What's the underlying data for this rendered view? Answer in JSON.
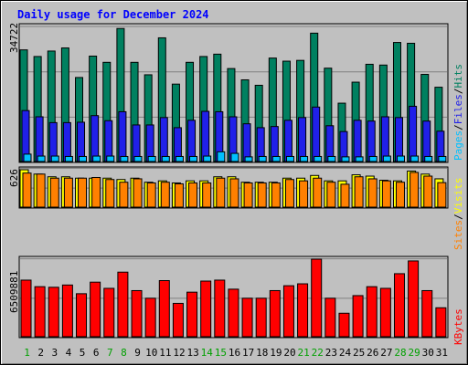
{
  "title": "Daily usage for December 2024",
  "days": [
    "1",
    "2",
    "3",
    "4",
    "5",
    "6",
    "7",
    "8",
    "9",
    "10",
    "11",
    "12",
    "13",
    "14",
    "15",
    "16",
    "17",
    "18",
    "19",
    "20",
    "21",
    "22",
    "23",
    "24",
    "25",
    "26",
    "27",
    "28",
    "29",
    "30",
    "31"
  ],
  "weekend_days": [
    "1",
    "7",
    "8",
    "14",
    "15",
    "21",
    "22",
    "28",
    "29"
  ],
  "colors": {
    "background": "#c0c0c0",
    "title": "#0000ff",
    "pages": "#2020e8",
    "files": "#00c0ff",
    "hits": "#008060",
    "sites": "#ff8000",
    "visits": "#ffff00",
    "kbytes": "#ff0000",
    "weekday_label": "#000000",
    "weekend_label": "#00a000",
    "gridline": "#808080"
  },
  "legend": {
    "top": [
      {
        "text": "Pages",
        "color_key": "files"
      },
      {
        "text": "/",
        "color_key": "weekday_label"
      },
      {
        "text": "Files",
        "color_key": "pages"
      },
      {
        "text": "/",
        "color_key": "weekday_label"
      },
      {
        "text": "Hits",
        "color_key": "hits"
      }
    ],
    "middle": [
      {
        "text": "Sites",
        "color_key": "sites"
      },
      {
        "text": "/",
        "color_key": "weekday_label"
      },
      {
        "text": "Visits",
        "color_key": "visits"
      }
    ],
    "bottom": [
      {
        "text": "KBytes",
        "color_key": "kbytes"
      }
    ]
  },
  "chart_data": {
    "type": "bar",
    "title": "Daily usage for December 2024",
    "categories": [
      "1",
      "2",
      "3",
      "4",
      "5",
      "6",
      "7",
      "8",
      "9",
      "10",
      "11",
      "12",
      "13",
      "14",
      "15",
      "16",
      "17",
      "18",
      "19",
      "20",
      "21",
      "22",
      "23",
      "24",
      "25",
      "26",
      "27",
      "28",
      "29",
      "30",
      "31"
    ],
    "panels": [
      {
        "name": "hits-files-pages",
        "max_label": "34722",
        "ylim": [
          0,
          34722
        ],
        "series": [
          {
            "name": "Hits",
            "color_key": "hits",
            "values": [
              28700,
              27000,
              28400,
              29200,
              21600,
              27100,
              25500,
              34200,
              25500,
              22300,
              31800,
              19900,
              25500,
              27000,
              27600,
              23900,
              21000,
              19600,
              26600,
              25800,
              26000,
              33000,
              24000,
              15000,
              20400,
              25000,
              24800,
              30600,
              30400,
              22400,
              19100
            ]
          },
          {
            "name": "Files",
            "color_key": "pages",
            "values": [
              13100,
              11500,
              10000,
              10000,
              10100,
              11800,
              10500,
              12800,
              9400,
              9400,
              11300,
              8700,
              10600,
              12900,
              12800,
              11500,
              9700,
              8700,
              9000,
              10600,
              11300,
              14000,
              9200,
              7700,
              10600,
              10400,
              11500,
              11300,
              14200,
              10400,
              7800
            ]
          },
          {
            "name": "Pages",
            "color_key": "files",
            "values": [
              1900,
              1400,
              1400,
              1300,
              1300,
              1400,
              1400,
              1300,
              1300,
              1300,
              1300,
              1300,
              1300,
              1400,
              2500,
              2100,
              1200,
              1300,
              1300,
              1300,
              1300,
              1300,
              1300,
              1200,
              1200,
              1300,
              1400,
              1400,
              1400,
              1300,
              1300
            ]
          }
        ]
      },
      {
        "name": "visits-sites",
        "max_label": "626",
        "ylim": [
          0,
          626
        ],
        "series": [
          {
            "name": "Visits",
            "color_key": "visits",
            "values": [
              626,
              553,
              508,
              508,
              485,
              485,
              485,
              462,
              485,
              417,
              440,
              405,
              440,
              440,
              508,
              508,
              417,
              417,
              417,
              485,
              485,
              530,
              440,
              440,
              541,
              519,
              450,
              440,
              604,
              553,
              474
            ]
          },
          {
            "name": "Sites",
            "color_key": "sites",
            "values": [
              570,
              553,
              485,
              485,
              485,
              496,
              462,
              417,
              474,
              405,
              417,
              390,
              405,
              405,
              485,
              474,
              405,
              405,
              405,
              462,
              440,
              485,
              417,
              383,
              508,
              474,
              440,
              417,
              581,
              519,
              410
            ]
          }
        ]
      },
      {
        "name": "kbytes",
        "max_label": "6509881",
        "ylim": [
          0,
          6509881
        ],
        "series": [
          {
            "name": "KBytes",
            "color_key": "kbytes",
            "values": [
              4750000,
              4200000,
              4150000,
              4340000,
              3610000,
              4580000,
              4060000,
              5420000,
              3870000,
              3230000,
              4710000,
              2800000,
              3740000,
              4670000,
              4750000,
              3990000,
              3230000,
              3230000,
              3870000,
              4280000,
              4440000,
              6509881,
              3230000,
              1970000,
              3450000,
              4200000,
              4060000,
              5290000,
              6360000,
              3870000,
              2430000
            ]
          }
        ]
      }
    ],
    "grid": true
  }
}
